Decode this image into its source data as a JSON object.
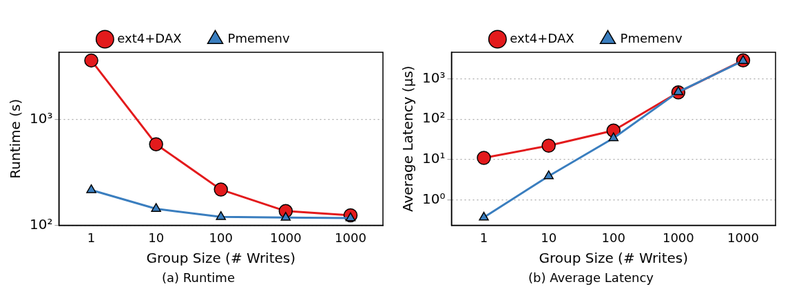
{
  "chart_data": [
    {
      "type": "line",
      "title": "(a) Runtime",
      "xlabel": "Group Size (# Writes)",
      "ylabel": "Runtime (s)",
      "categories": [
        "1",
        "10",
        "100",
        "1000",
        "1000"
      ],
      "log": true,
      "grid": "y",
      "legend": "top",
      "ylim": [
        100,
        4300
      ],
      "yticks": [
        {
          "value": 100,
          "label": "10²"
        },
        {
          "value": 1000,
          "label": "10³"
        }
      ],
      "series": [
        {
          "name": "ext4+DAX",
          "color": "#e31a1c",
          "marker": "circle",
          "values": [
            3600,
            582,
            217,
            136,
            124
          ]
        },
        {
          "name": "Pmemenv",
          "color": "#3a7ebf",
          "marker": "triangle",
          "values": [
            215,
            143,
            120,
            118,
            117
          ]
        }
      ]
    },
    {
      "type": "line",
      "title": "(b) Average Latency",
      "xlabel": "Group Size (# Writes)",
      "ylabel": "Average Latency (μs)",
      "categories": [
        "1",
        "10",
        "100",
        "1000",
        "1000"
      ],
      "log": true,
      "grid": "y",
      "legend": "top",
      "ylim": [
        0.237,
        4500
      ],
      "yticks": [
        {
          "value": 1,
          "label": "10⁰"
        },
        {
          "value": 10,
          "label": "10¹"
        },
        {
          "value": 100,
          "label": "10²"
        },
        {
          "value": 1000,
          "label": "10³"
        }
      ],
      "series": [
        {
          "name": "ext4+DAX",
          "color": "#e31a1c",
          "marker": "circle",
          "values": [
            11,
            22,
            52,
            460,
            2850
          ]
        },
        {
          "name": "Pmemenv",
          "color": "#3a7ebf",
          "marker": "triangle",
          "values": [
            0.37,
            3.9,
            34,
            470,
            2760
          ]
        }
      ]
    }
  ]
}
